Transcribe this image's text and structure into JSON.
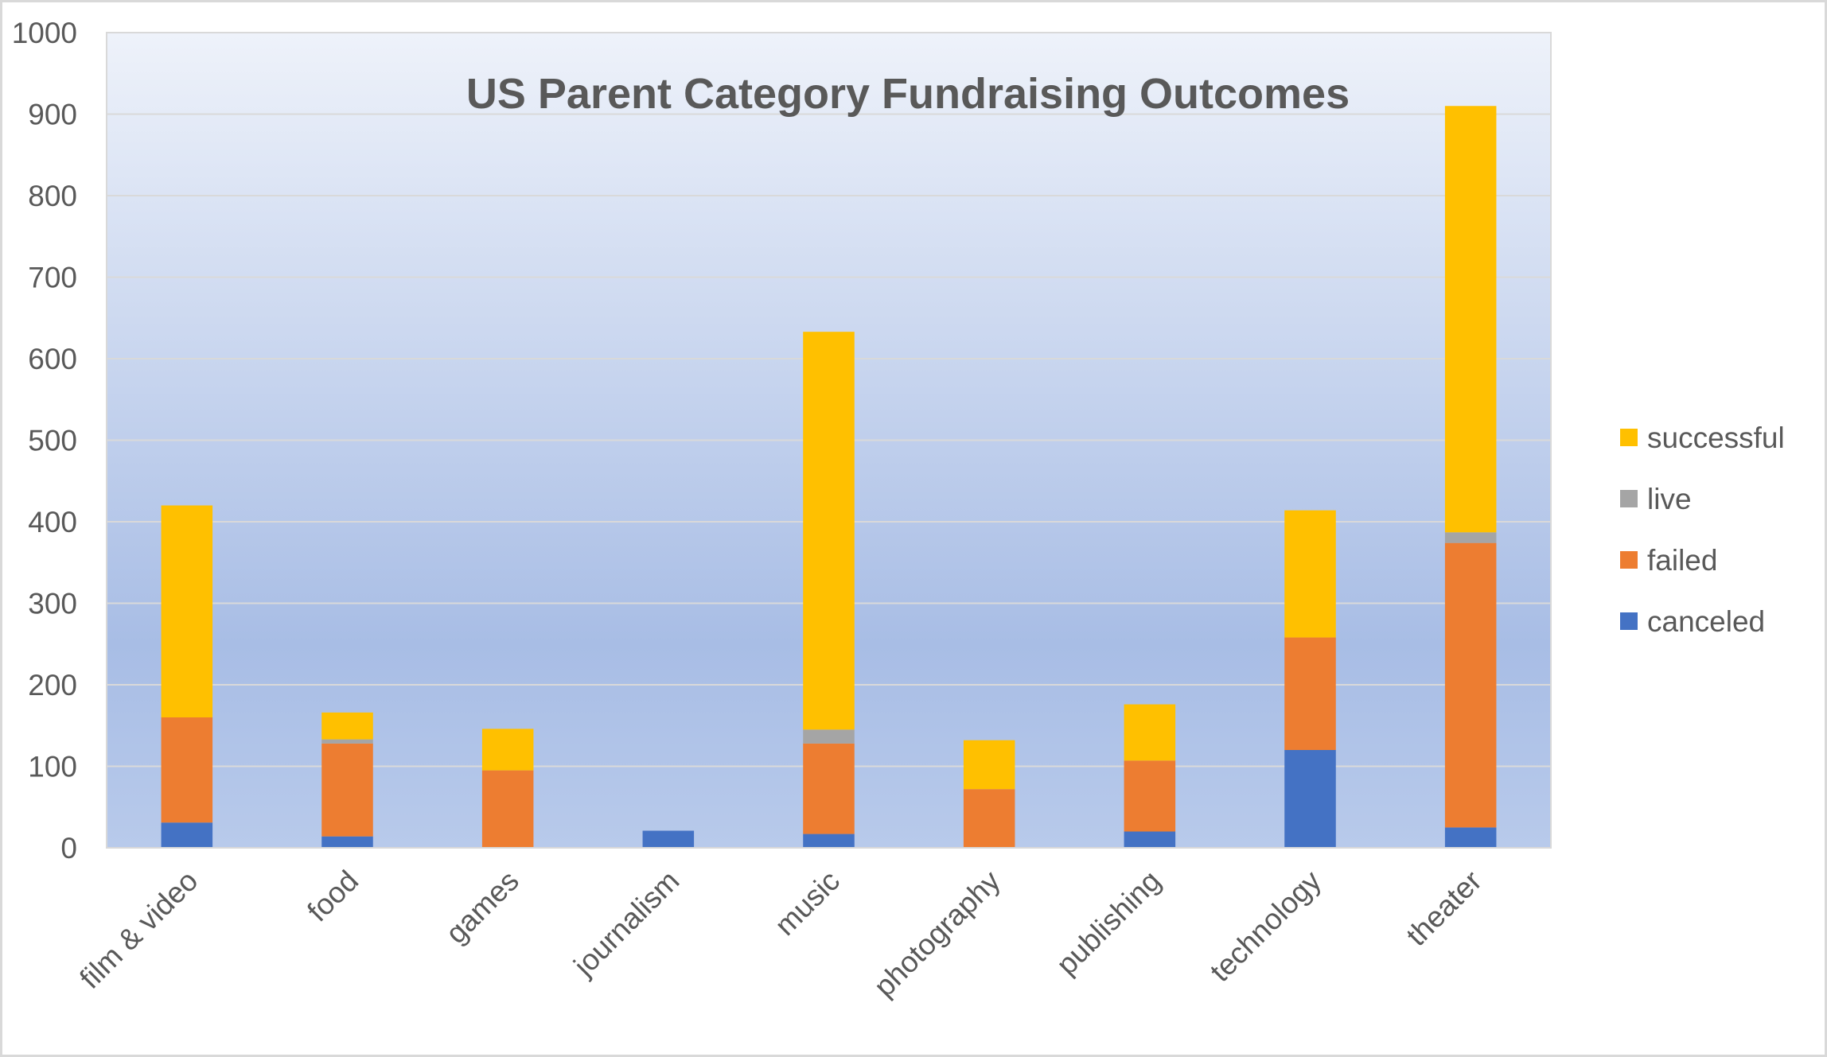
{
  "chart_data": {
    "type": "bar",
    "stacked": true,
    "title": "US Parent Category Fundraising Outcomes",
    "xlabel": "",
    "ylabel": "",
    "ylim": [
      0,
      1000
    ],
    "yticks": [
      0,
      100,
      200,
      300,
      400,
      500,
      600,
      700,
      800,
      900,
      1000
    ],
    "grid": true,
    "legend_position": "right",
    "categories": [
      "film & video",
      "food",
      "games",
      "journalism",
      "music",
      "photography",
      "publishing",
      "technology",
      "theater"
    ],
    "series": [
      {
        "name": "canceled",
        "color": "#4472c4",
        "values": [
          31,
          14,
          0,
          21,
          17,
          0,
          20,
          120,
          25
        ]
      },
      {
        "name": "failed",
        "color": "#ed7d31",
        "values": [
          129,
          114,
          95,
          0,
          111,
          72,
          87,
          138,
          349
        ]
      },
      {
        "name": "live",
        "color": "#a5a5a5",
        "values": [
          0,
          5,
          0,
          0,
          17,
          0,
          0,
          0,
          13
        ]
      },
      {
        "name": "successful",
        "color": "#ffc000",
        "values": [
          260,
          33,
          51,
          0,
          488,
          60,
          69,
          156,
          523
        ]
      }
    ],
    "legend_order": [
      "successful",
      "live",
      "failed",
      "canceled"
    ]
  }
}
